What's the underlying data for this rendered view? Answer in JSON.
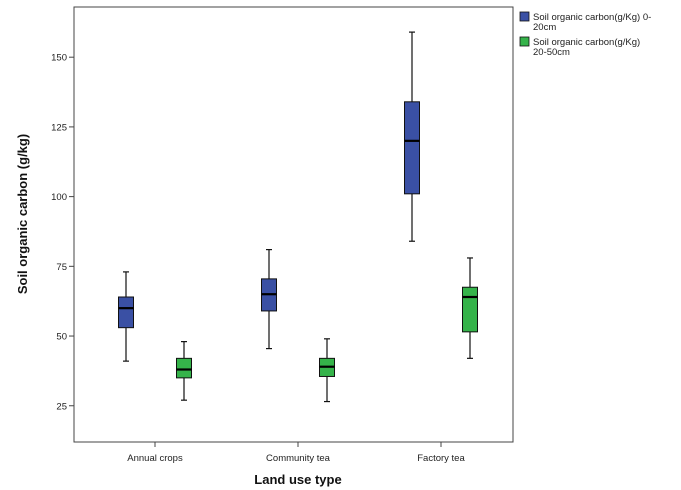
{
  "chart_data": {
    "type": "boxplot",
    "title": "",
    "xlabel": "Land use type",
    "ylabel": "Soil organic carbon (g/kg)",
    "ylim": [
      12,
      168
    ],
    "yticks": [
      25,
      50,
      75,
      100,
      125,
      150
    ],
    "categories": [
      "Annual crops",
      "Community tea",
      "Factory tea"
    ],
    "grid": false,
    "legend_position": "right",
    "series": [
      {
        "name": "Soil organic carbon(g/Kg) 0-20cm",
        "legend_lines": [
          "Soil organic carbon(g/Kg) 0-",
          "20cm"
        ],
        "color": "#3a50a4",
        "boxes": [
          {
            "min": 41,
            "q1": 53,
            "median": 60,
            "q3": 64,
            "max": 73
          },
          {
            "min": 45.5,
            "q1": 59,
            "median": 65,
            "q3": 70.5,
            "max": 81
          },
          {
            "min": 84,
            "q1": 101,
            "median": 120,
            "q3": 134,
            "max": 159
          }
        ]
      },
      {
        "name": "Soil organic carbon(g/Kg) 20-50cm",
        "legend_lines": [
          "Soil organic carbon(g/Kg)",
          "20-50cm"
        ],
        "color": "#35b34a",
        "boxes": [
          {
            "min": 27,
            "q1": 35,
            "median": 38,
            "q3": 42,
            "max": 48
          },
          {
            "min": 26.5,
            "q1": 35.5,
            "median": 39,
            "q3": 42,
            "max": 49
          },
          {
            "min": 42,
            "q1": 51.5,
            "median": 64,
            "q3": 67.5,
            "max": 78
          }
        ]
      }
    ]
  }
}
